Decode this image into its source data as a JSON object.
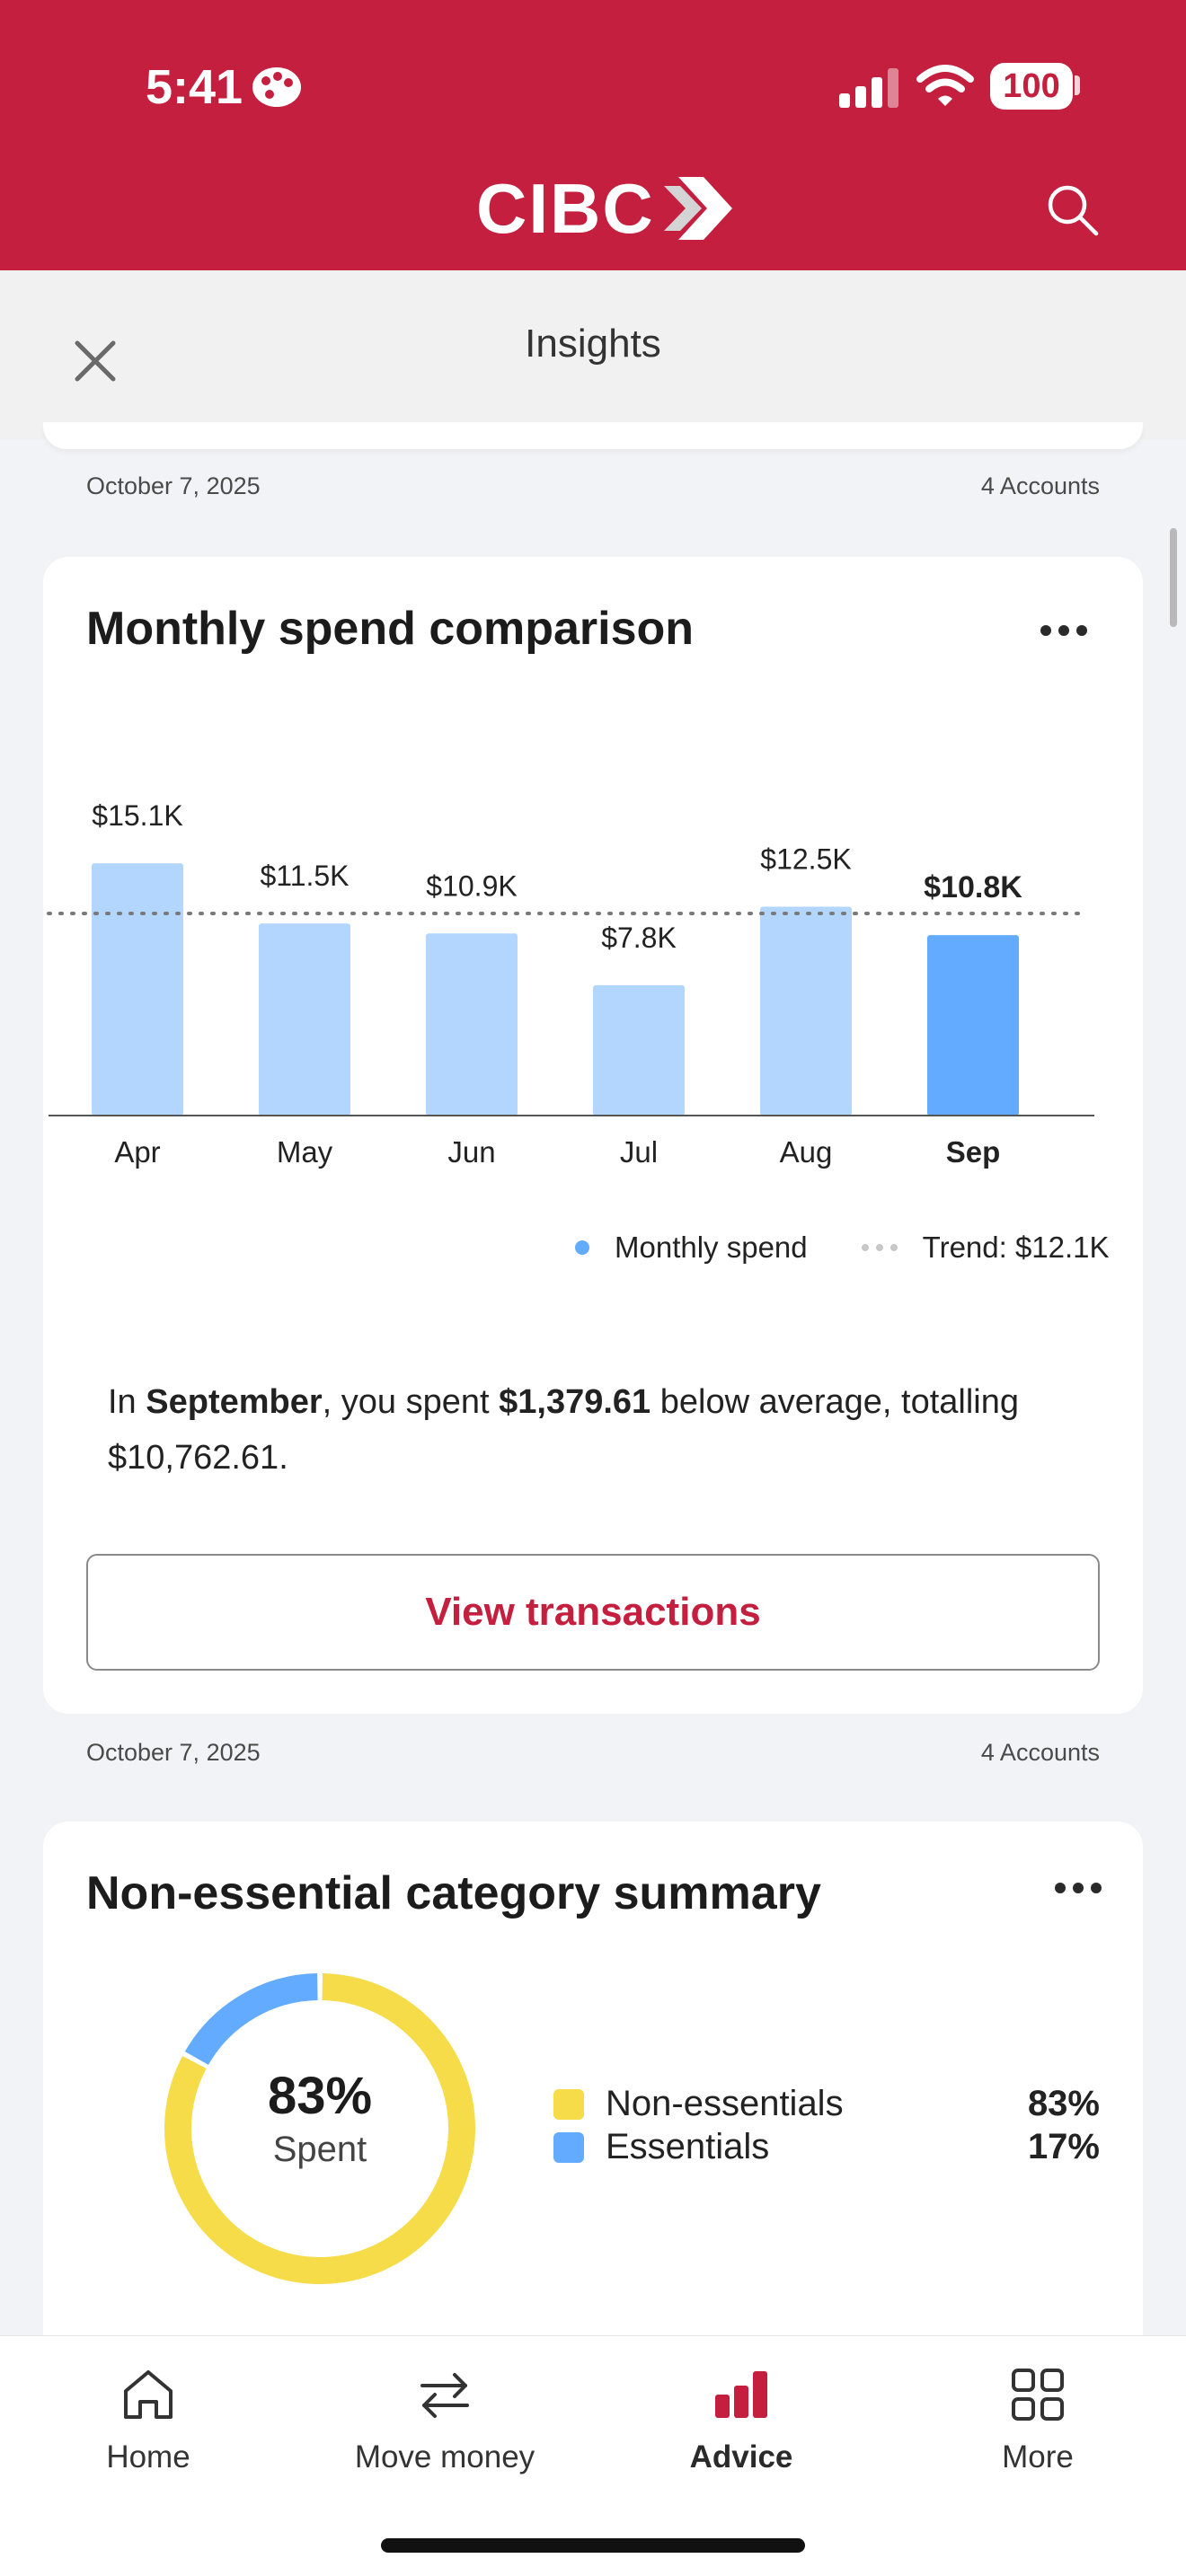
{
  "status": {
    "time": "5:41",
    "battery": "100"
  },
  "header": {
    "logo": "CIBC",
    "title": "Insights"
  },
  "meta_1": {
    "date": "October 7, 2025",
    "accounts": "4 Accounts"
  },
  "meta_2": {
    "date": "October 7, 2025",
    "accounts": "4 Accounts"
  },
  "monthly_card": {
    "title": "Monthly spend comparison",
    "legend_spend": "Monthly spend",
    "legend_trend": "Trend: $12.1K",
    "summary": {
      "p1": "In ",
      "month": "September",
      "p2": ", you spent ",
      "amount": "$1,379.61",
      "p3": " below average, totalling ",
      "total": "$10,762.61",
      "p4": "."
    },
    "button": "View transactions"
  },
  "chart_data": {
    "type": "bar",
    "categories": [
      "Apr",
      "May",
      "Jun",
      "Jul",
      "Aug",
      "Sep"
    ],
    "values": [
      15.1,
      11.5,
      10.9,
      7.8,
      12.5,
      10.8
    ],
    "value_labels": [
      "$15.1K",
      "$11.5K",
      "$10.9K",
      "$7.8K",
      "$12.5K",
      "$10.8K"
    ],
    "series": [
      {
        "name": "Monthly spend",
        "values": [
          15.1,
          11.5,
          10.9,
          7.8,
          12.5,
          10.8
        ]
      }
    ],
    "trend": 12.1,
    "highlight_index": 5,
    "ylim": [
      0,
      20
    ],
    "colors": {
      "bar": "#b3d6ff",
      "highlight": "#62abff",
      "trend": "#7a7a7a"
    }
  },
  "category_card": {
    "title": "Non-essential category summary",
    "donut_pct": "83%",
    "donut_label": "Spent",
    "items": [
      {
        "name": "Non-essentials",
        "pct": "83%",
        "value": 83,
        "color": "#f5dc48"
      },
      {
        "name": "Essentials",
        "pct": "17%",
        "value": 17,
        "color": "#62abff"
      }
    ]
  },
  "nav": [
    {
      "label": "Home",
      "icon": "home-icon"
    },
    {
      "label": "Move money",
      "icon": "transfer-icon"
    },
    {
      "label": "Advice",
      "icon": "bar-chart-icon",
      "active": true
    },
    {
      "label": "More",
      "icon": "grid-icon"
    }
  ],
  "colors": {
    "brand": "#c41f3e"
  }
}
